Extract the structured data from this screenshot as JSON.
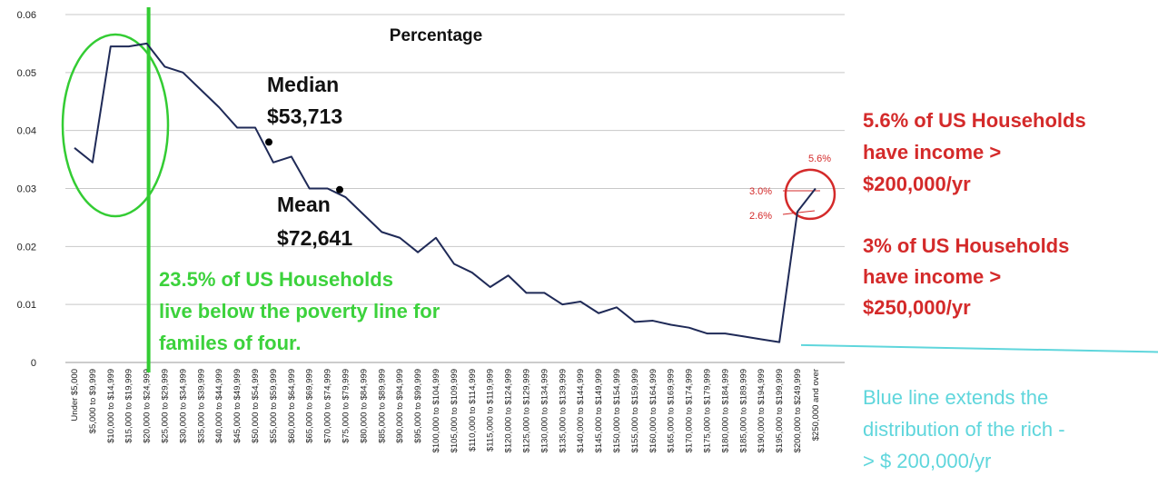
{
  "chart_data": {
    "type": "line",
    "title": "Percentage",
    "ylim": [
      0,
      0.06
    ],
    "yticks": [
      "0",
      "0.01",
      "0.02",
      "0.03",
      "0.04",
      "0.05",
      "0.06"
    ],
    "categories": [
      "Under $5,000",
      "$5,000 to $9,999",
      "$10,000 to $14,999",
      "$15,000 to $19,999",
      "$20,000 to $24,999",
      "$25,000 to $29,999",
      "$30,000 to $34,999",
      "$35,000 to $39,999",
      "$40,000 to $44,999",
      "$45,000 to $49,999",
      "$50,000 to $54,999",
      "$55,000 to $59,999",
      "$60,000 to $64,999",
      "$65,000 to $69,999",
      "$70,000 to $74,999",
      "$75,000 to $79,999",
      "$80,000 to $84,999",
      "$85,000 to $89,999",
      "$90,000 to $94,999",
      "$95,000 to $99,999",
      "$100,000 to $104,999",
      "$105,000 to $109,999",
      "$110,000 to $114,999",
      "$115,000 to $119,999",
      "$120,000 to $124,999",
      "$125,000 to $129,999",
      "$130,000 to $134,999",
      "$135,000 to $139,999",
      "$140,000 to $144,999",
      "$145,000 to $149,999",
      "$150,000 to $154,999",
      "$155,000 to $159,999",
      "$160,000 to $164,999",
      "$165,000 to $169,999",
      "$170,000 to $174,999",
      "$175,000 to $179,999",
      "$180,000 to $184,999",
      "$185,000 to $189,999",
      "$190,000 to $194,999",
      "$195,000 to $199,999",
      "$200,000 to $249,999",
      "$250,000 and over"
    ],
    "series": [
      {
        "values": [
          0.037,
          0.0345,
          0.0545,
          0.0545,
          0.055,
          0.051,
          0.05,
          0.047,
          0.044,
          0.0405,
          0.0405,
          0.0345,
          0.0355,
          0.03,
          0.03,
          0.0285,
          0.0255,
          0.0225,
          0.0215,
          0.019,
          0.0215,
          0.017,
          0.0155,
          0.013,
          0.015,
          0.012,
          0.012,
          0.01,
          0.0105,
          0.0085,
          0.0095,
          0.007,
          0.0072,
          0.0065,
          0.006,
          0.005,
          0.005,
          0.0045,
          0.004,
          0.0035,
          0.026,
          0.03
        ]
      }
    ],
    "extension_line": {
      "from_value": 0.003,
      "to_value": 0.0018,
      "color": "#5fd6dc"
    },
    "colors": {
      "line": "#1f2a57",
      "poverty_line": "#33cc33",
      "ellipse": "#33cc33",
      "circle": "#d42a2a",
      "grid": "#c8c8c8"
    },
    "poverty_line_category": "$20,000 to $24,999",
    "median_value": 0.038,
    "mean_value": 0.0298,
    "labels": {
      "median": [
        "Median",
        "$53,713"
      ],
      "mean": [
        "Mean",
        "$72,641"
      ],
      "poverty": [
        "23.5% of US Households",
        "live below the poverty line for",
        "familes of four."
      ],
      "rich1": [
        "5.6% of US Households",
        "have income >",
        "$200,000/yr"
      ],
      "rich2": [
        "3% of US Households",
        "have income >",
        "$250,000/yr"
      ],
      "extend": [
        "Blue line extends the",
        "distribution of the rich -",
        "> $ 200,000/yr"
      ],
      "pct56": "5.6%",
      "pct30": "3.0%",
      "pct26": "2.6%"
    },
    "grid": true
  }
}
